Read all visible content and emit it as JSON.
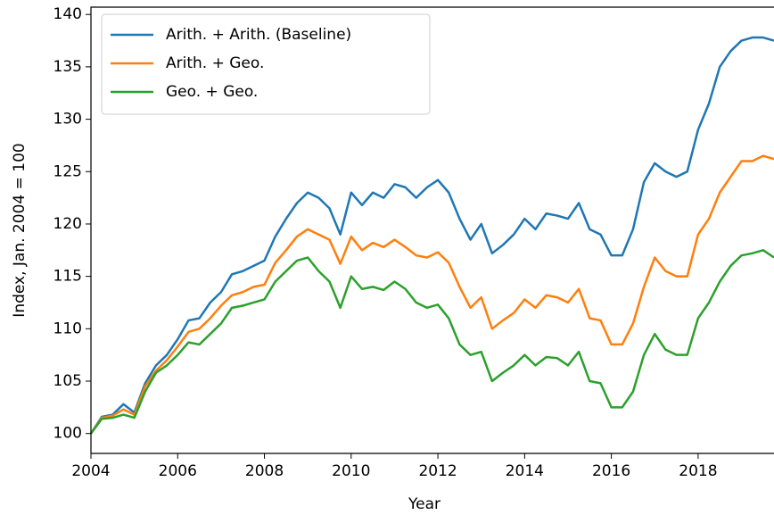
{
  "chart_data": {
    "type": "line",
    "xlabel": "Year",
    "ylabel": "Index, Jan. 2004 = 100",
    "x": [
      2004.0,
      2004.25,
      2004.5,
      2004.75,
      2005.0,
      2005.25,
      2005.5,
      2005.75,
      2006.0,
      2006.25,
      2006.5,
      2006.75,
      2007.0,
      2007.25,
      2007.5,
      2007.75,
      2008.0,
      2008.25,
      2008.5,
      2008.75,
      2009.0,
      2009.25,
      2009.5,
      2009.75,
      2010.0,
      2010.25,
      2010.5,
      2010.75,
      2011.0,
      2011.25,
      2011.5,
      2011.75,
      2012.0,
      2012.25,
      2012.5,
      2012.75,
      2013.0,
      2013.25,
      2013.5,
      2013.75,
      2014.0,
      2014.25,
      2014.5,
      2014.75,
      2015.0,
      2015.25,
      2015.5,
      2015.75,
      2016.0,
      2016.25,
      2016.5,
      2016.75,
      2017.0,
      2017.25,
      2017.5,
      2017.75,
      2018.0,
      2018.25,
      2018.5,
      2018.75,
      2019.0,
      2019.25,
      2019.5,
      2019.75
    ],
    "series": [
      {
        "name": "Arith. + Arith. (Baseline)",
        "color": "#1f77b4",
        "values": [
          100,
          101.6,
          101.8,
          102.8,
          102.0,
          104.8,
          106.5,
          107.5,
          109,
          110.8,
          111,
          112.5,
          113.5,
          115.2,
          115.5,
          116,
          116.5,
          118.8,
          120.5,
          122,
          123,
          122.5,
          121.5,
          119,
          123,
          121.8,
          123,
          122.5,
          123.8,
          123.5,
          122.5,
          123.5,
          124.2,
          123,
          120.5,
          118.5,
          120,
          117.2,
          118,
          119,
          120.5,
          119.5,
          121,
          120.8,
          120.5,
          122,
          119.5,
          119,
          117,
          117,
          119.5,
          124,
          125.8,
          125,
          124.5,
          125,
          129,
          131.5,
          135,
          136.5,
          137.5,
          137.8,
          137.8,
          137.5
        ]
      },
      {
        "name": "Arith. + Geo.",
        "color": "#ff7f0e",
        "values": [
          100,
          101.5,
          101.7,
          102.3,
          101.8,
          104.5,
          106,
          107,
          108.3,
          109.7,
          110,
          111,
          112.2,
          113.2,
          113.5,
          114,
          114.2,
          116.3,
          117.5,
          118.8,
          119.5,
          119,
          118.5,
          116.2,
          118.8,
          117.5,
          118.2,
          117.8,
          118.5,
          117.8,
          117,
          116.8,
          117.3,
          116.3,
          114,
          112,
          113,
          110,
          110.8,
          111.5,
          112.8,
          112,
          113.2,
          113,
          112.5,
          113.8,
          111,
          110.8,
          108.5,
          108.5,
          110.5,
          114,
          116.8,
          115.5,
          115,
          115,
          119,
          120.5,
          123,
          124.5,
          126,
          126,
          126.5,
          126.2
        ]
      },
      {
        "name": "Geo. + Geo.",
        "color": "#2ca02c",
        "values": [
          100,
          101.4,
          101.5,
          101.8,
          101.5,
          104,
          105.8,
          106.5,
          107.5,
          108.7,
          108.5,
          109.5,
          110.5,
          112,
          112.2,
          112.5,
          112.8,
          114.5,
          115.5,
          116.5,
          116.8,
          115.5,
          114.5,
          112,
          115,
          113.8,
          114,
          113.7,
          114.5,
          113.8,
          112.5,
          112,
          112.3,
          111,
          108.5,
          107.5,
          107.8,
          105,
          105.8,
          106.5,
          107.5,
          106.5,
          107.3,
          107.2,
          106.5,
          107.8,
          105,
          104.8,
          102.5,
          102.5,
          104,
          107.5,
          109.5,
          108,
          107.5,
          107.5,
          111,
          112.5,
          114.5,
          116,
          117,
          117.2,
          117.5,
          116.8
        ]
      }
    ],
    "xlim": [
      2004,
      2019.75
    ],
    "xticks": [
      2004,
      2006,
      2008,
      2010,
      2012,
      2014,
      2016,
      2018
    ],
    "ylim": [
      98.1,
      140.7
    ],
    "yticks": [
      100,
      105,
      110,
      115,
      120,
      125,
      130,
      135,
      140
    ],
    "grid": false,
    "legend": "upper left"
  }
}
